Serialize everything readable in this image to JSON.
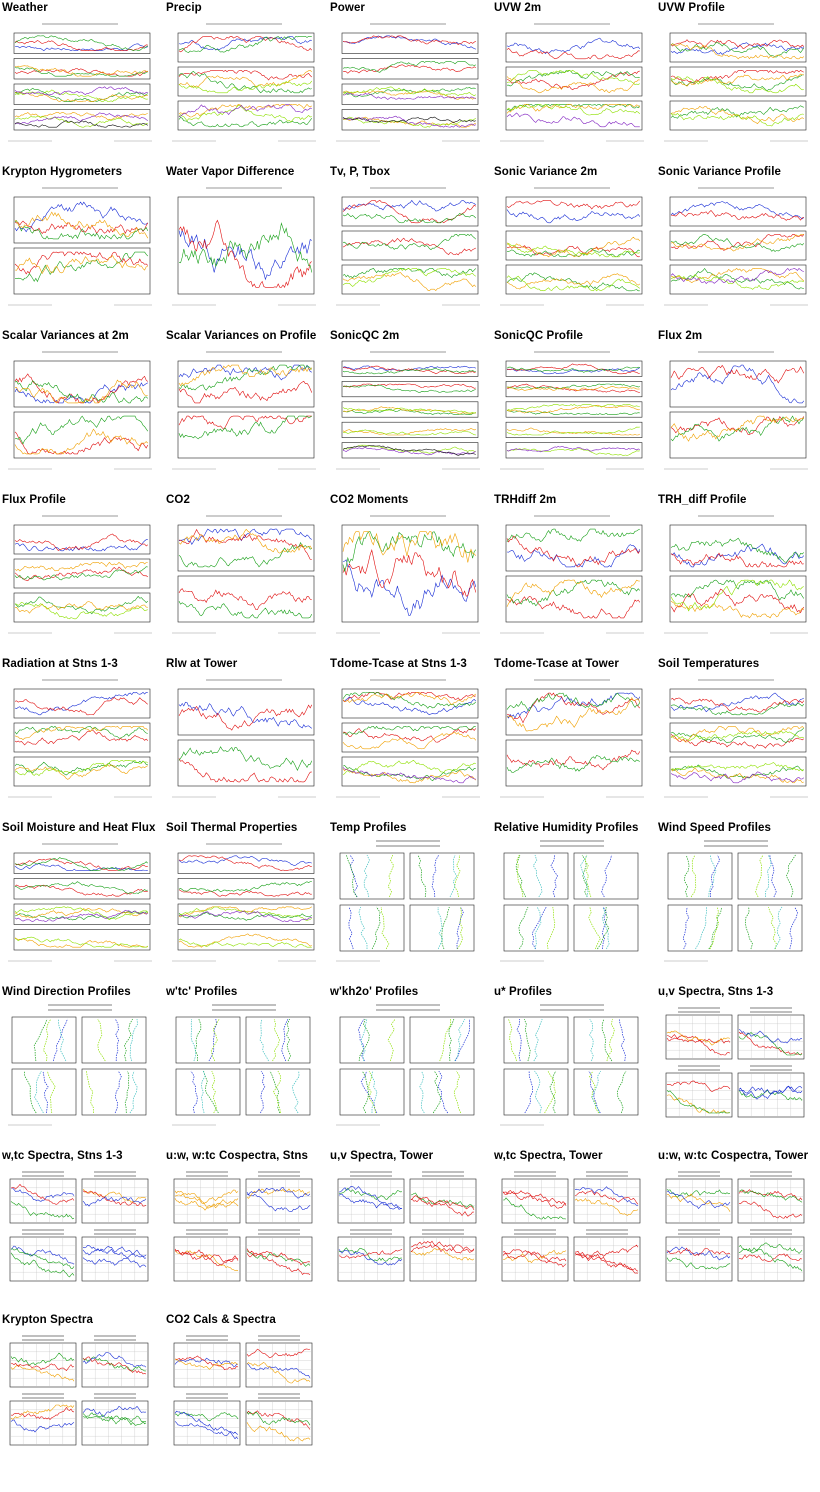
{
  "thumbnails": [
    {
      "title": "Weather",
      "kind": "ts",
      "panels": 4
    },
    {
      "title": "Precip",
      "kind": "ts",
      "panels": 3
    },
    {
      "title": "Power",
      "kind": "ts",
      "panels": 4
    },
    {
      "title": "UVW 2m",
      "kind": "ts",
      "panels": 3
    },
    {
      "title": "UVW Profile",
      "kind": "ts",
      "panels": 3
    },
    {
      "title": "Krypton Hygrometers",
      "kind": "ts",
      "panels": 2
    },
    {
      "title": "Water Vapor Difference",
      "kind": "ts",
      "panels": 1
    },
    {
      "title": "Tv, P, Tbox",
      "kind": "ts",
      "panels": 3
    },
    {
      "title": "Sonic Variance 2m",
      "kind": "ts",
      "panels": 3
    },
    {
      "title": "Sonic Variance Profile",
      "kind": "ts",
      "panels": 3
    },
    {
      "title": "Scalar Variances at 2m",
      "kind": "ts",
      "panels": 2
    },
    {
      "title": "Scalar Variances on Profile",
      "kind": "ts",
      "panels": 2
    },
    {
      "title": "SonicQC 2m",
      "kind": "ts",
      "panels": 5
    },
    {
      "title": "SonicQC Profile",
      "kind": "ts",
      "panels": 5
    },
    {
      "title": "Flux 2m",
      "kind": "ts",
      "panels": 2
    },
    {
      "title": "Flux Profile",
      "kind": "ts",
      "panels": 3
    },
    {
      "title": "CO2",
      "kind": "ts",
      "panels": 2
    },
    {
      "title": "CO2 Moments",
      "kind": "ts",
      "panels": 1
    },
    {
      "title": "TRHdiff 2m",
      "kind": "ts",
      "panels": 2
    },
    {
      "title": "TRH_diff Profile",
      "kind": "ts",
      "panels": 2
    },
    {
      "title": "Radiation at Stns 1-3",
      "kind": "ts",
      "panels": 3
    },
    {
      "title": "Rlw at Tower",
      "kind": "ts",
      "panels": 2
    },
    {
      "title": "Tdome-Tcase at Stns 1-3",
      "kind": "ts",
      "panels": 3
    },
    {
      "title": "Tdome-Tcase at Tower",
      "kind": "ts",
      "panels": 2
    },
    {
      "title": "Soil Temperatures",
      "kind": "ts",
      "panels": 3
    },
    {
      "title": "Soil Moisture and Heat Flux",
      "kind": "ts",
      "panels": 4
    },
    {
      "title": "Soil Thermal Properties",
      "kind": "ts",
      "panels": 4
    },
    {
      "title": "Temp Profiles",
      "kind": "prof",
      "panels": 4
    },
    {
      "title": "Relative Humidity Profiles",
      "kind": "prof",
      "panels": 4
    },
    {
      "title": "Wind Speed Profiles",
      "kind": "prof",
      "panels": 4
    },
    {
      "title": "Wind Direction Profiles",
      "kind": "prof",
      "panels": 4
    },
    {
      "title": "w'tc' Profiles",
      "kind": "prof",
      "panels": 4
    },
    {
      "title": "w'kh2o' Profiles",
      "kind": "prof",
      "panels": 4
    },
    {
      "title": "u* Profiles",
      "kind": "prof",
      "panels": 4
    },
    {
      "title": "u,v Spectra, Stns 1-3",
      "kind": "spec",
      "panels": 4
    },
    {
      "title": "w,tc Spectra, Stns 1-3",
      "kind": "spec",
      "panels": 4
    },
    {
      "title": "u:w, w:tc Cospectra, Stns",
      "kind": "spec",
      "panels": 4
    },
    {
      "title": "u,v Spectra, Tower",
      "kind": "spec",
      "panels": 4
    },
    {
      "title": "w,tc Spectra, Tower",
      "kind": "spec",
      "panels": 4
    },
    {
      "title": "u:w, w:tc Cospectra, Tower",
      "kind": "spec",
      "panels": 4
    },
    {
      "title": "Krypton Spectra",
      "kind": "spec",
      "panels": 4
    },
    {
      "title": "CO2 Cals & Spectra",
      "kind": "spec",
      "panels": 4
    }
  ],
  "colors": {
    "blue": "#1a2fd6",
    "red": "#e01010",
    "green": "#18a018",
    "orange": "#f0a000",
    "lime": "#8ee000",
    "purple": "#8020c0",
    "black": "#111111",
    "frame": "#222222",
    "grid": "#bbbbbb"
  }
}
